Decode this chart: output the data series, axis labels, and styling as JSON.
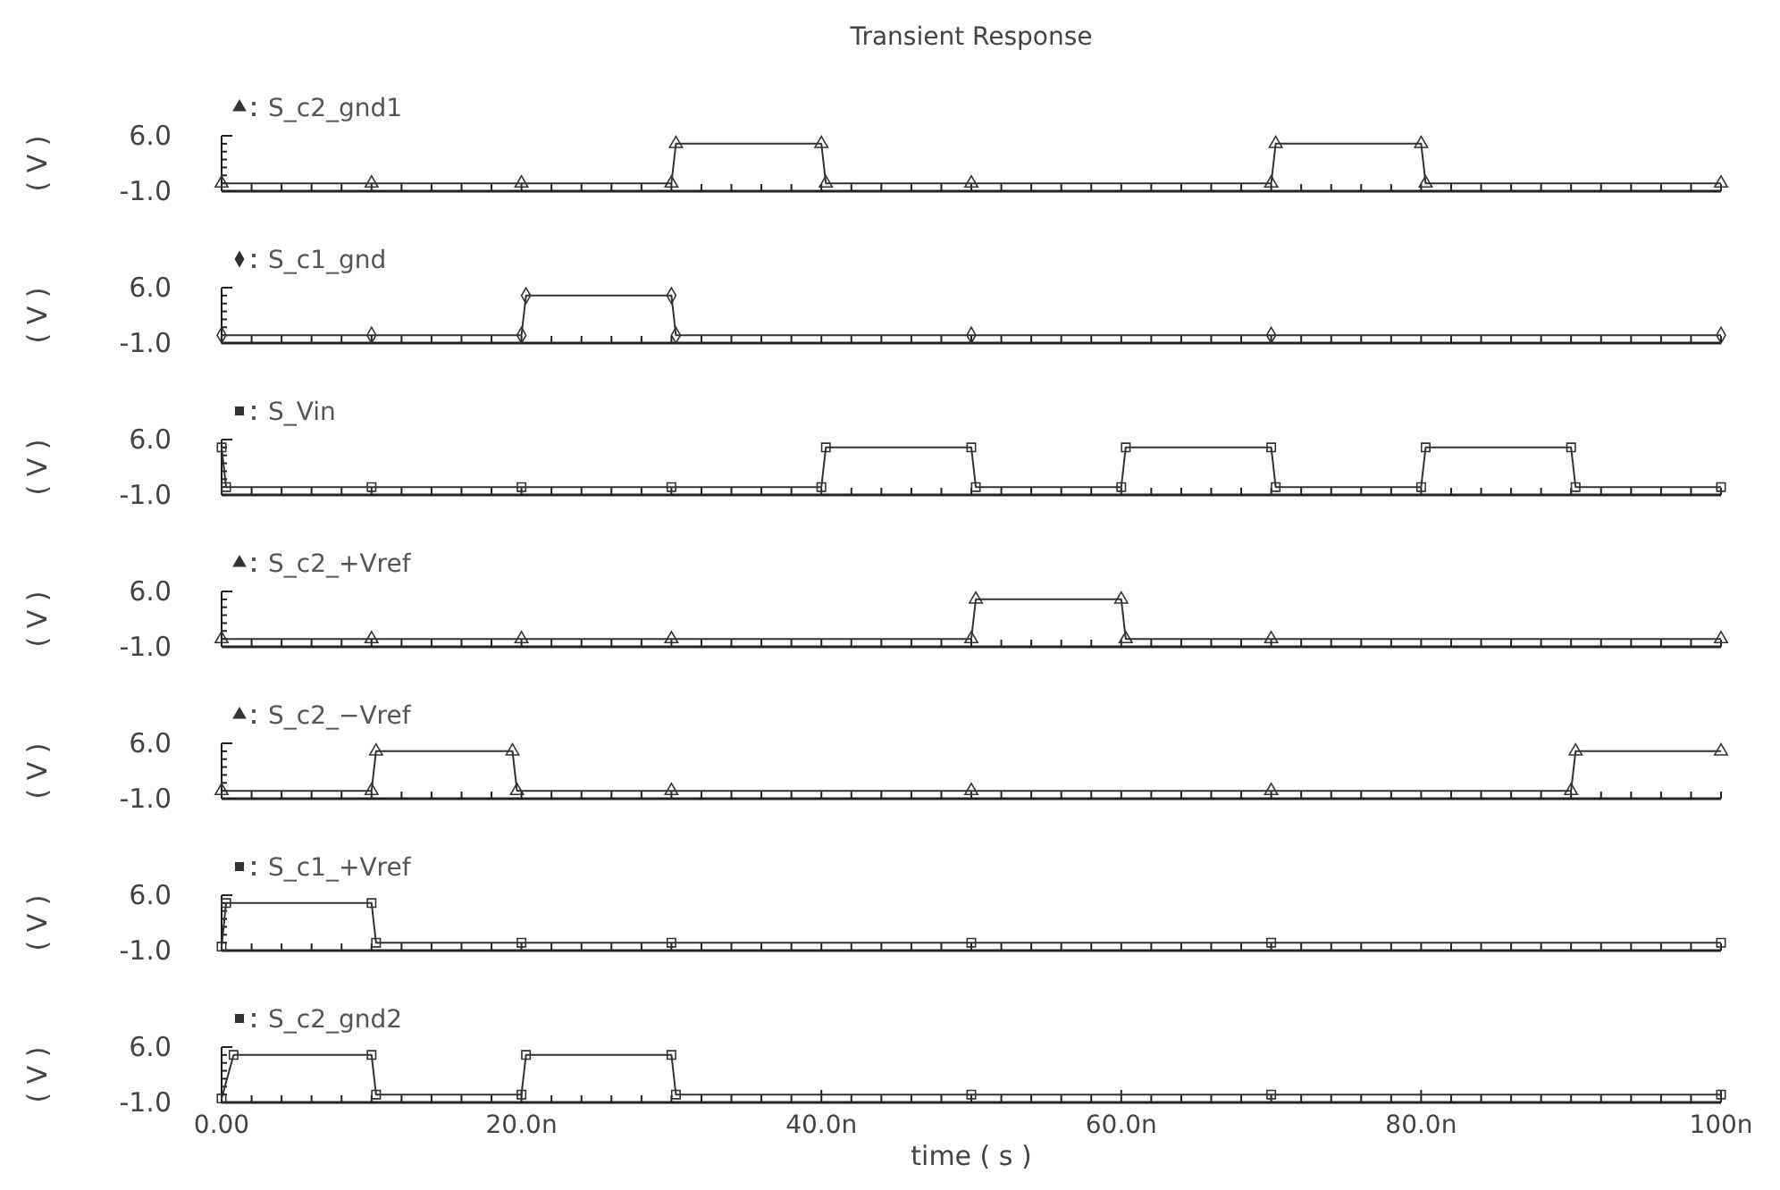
{
  "chart_data": [
    {
      "type": "line",
      "title": "Transient Response",
      "ylabel": "( V )",
      "xlim": [
        0,
        100
      ],
      "ylim": [
        -1,
        6
      ],
      "marker": "triangle",
      "legend": "top left",
      "tick_labels": "y",
      "xticks": [
        {
          "value": 0,
          "label": null
        },
        {
          "value": 2,
          "label": null
        },
        {
          "value": 4,
          "label": null
        },
        {
          "value": 6,
          "label": null
        },
        {
          "value": 8,
          "label": null
        },
        {
          "value": 10,
          "label": null
        },
        {
          "value": 12,
          "label": null
        },
        {
          "value": 14,
          "label": null
        },
        {
          "value": 16,
          "label": null
        },
        {
          "value": 18,
          "label": null
        },
        {
          "value": 20,
          "label": null
        },
        {
          "value": 22,
          "label": null
        },
        {
          "value": 24,
          "label": null
        },
        {
          "value": 26,
          "label": null
        },
        {
          "value": 28,
          "label": null
        },
        {
          "value": 30,
          "label": null
        },
        {
          "value": 32,
          "label": null
        },
        {
          "value": 34,
          "label": null
        },
        {
          "value": 36,
          "label": null
        },
        {
          "value": 38,
          "label": null
        },
        {
          "value": 40,
          "label": null
        },
        {
          "value": 42,
          "label": null
        },
        {
          "value": 44,
          "label": null
        },
        {
          "value": 46,
          "label": null
        },
        {
          "value": 48,
          "label": null
        },
        {
          "value": 50,
          "label": null
        },
        {
          "value": 52,
          "label": null
        },
        {
          "value": 54,
          "label": null
        },
        {
          "value": 56,
          "label": null
        },
        {
          "value": 58,
          "label": null
        },
        {
          "value": 60,
          "label": null
        },
        {
          "value": 62,
          "label": null
        },
        {
          "value": 64,
          "label": null
        },
        {
          "value": 66,
          "label": null
        },
        {
          "value": 68,
          "label": null
        },
        {
          "value": 70,
          "label": null
        },
        {
          "value": 72,
          "label": null
        },
        {
          "value": 74,
          "label": null
        },
        {
          "value": 76,
          "label": null
        },
        {
          "value": 78,
          "label": null
        },
        {
          "value": 80,
          "label": null
        },
        {
          "value": 82,
          "label": null
        },
        {
          "value": 84,
          "label": null
        },
        {
          "value": 86,
          "label": null
        },
        {
          "value": 88,
          "label": null
        },
        {
          "value": 90,
          "label": null
        },
        {
          "value": 92,
          "label": null
        },
        {
          "value": 94,
          "label": null
        },
        {
          "value": 96,
          "label": null
        },
        {
          "value": 98,
          "label": null
        },
        {
          "value": 100,
          "label": null
        }
      ],
      "yticks": [
        {
          "value": -1,
          "label": "-1.0"
        },
        {
          "value": 0,
          "label": null
        },
        {
          "value": 1,
          "label": null
        },
        {
          "value": 2,
          "label": null
        },
        {
          "value": 3,
          "label": null
        },
        {
          "value": 4,
          "label": null
        },
        {
          "value": 5,
          "label": null
        },
        {
          "value": 6,
          "label": "6.0"
        }
      ],
      "series": [
        {
          "name": "S_c2_gnd1",
          "color": "#333333",
          "x": [
            0,
            10,
            20,
            30,
            30.3,
            40,
            40.3,
            50,
            70,
            70.3,
            80,
            80.3,
            100
          ],
          "values": [
            0,
            0,
            0,
            0,
            5,
            5,
            0,
            0,
            0,
            5,
            5,
            0,
            0
          ]
        }
      ]
    },
    {
      "type": "line",
      "ylabel": "( V )",
      "xlim": [
        0,
        100
      ],
      "ylim": [
        -1,
        6
      ],
      "marker": "diamond",
      "legend": "top left",
      "tick_labels": "y",
      "xticks": [
        {
          "value": 0,
          "label": null
        },
        {
          "value": 2,
          "label": null
        },
        {
          "value": 4,
          "label": null
        },
        {
          "value": 6,
          "label": null
        },
        {
          "value": 8,
          "label": null
        },
        {
          "value": 10,
          "label": null
        },
        {
          "value": 12,
          "label": null
        },
        {
          "value": 14,
          "label": null
        },
        {
          "value": 16,
          "label": null
        },
        {
          "value": 18,
          "label": null
        },
        {
          "value": 20,
          "label": null
        },
        {
          "value": 22,
          "label": null
        },
        {
          "value": 24,
          "label": null
        },
        {
          "value": 26,
          "label": null
        },
        {
          "value": 28,
          "label": null
        },
        {
          "value": 30,
          "label": null
        },
        {
          "value": 32,
          "label": null
        },
        {
          "value": 34,
          "label": null
        },
        {
          "value": 36,
          "label": null
        },
        {
          "value": 38,
          "label": null
        },
        {
          "value": 40,
          "label": null
        },
        {
          "value": 42,
          "label": null
        },
        {
          "value": 44,
          "label": null
        },
        {
          "value": 46,
          "label": null
        },
        {
          "value": 48,
          "label": null
        },
        {
          "value": 50,
          "label": null
        },
        {
          "value": 52,
          "label": null
        },
        {
          "value": 54,
          "label": null
        },
        {
          "value": 56,
          "label": null
        },
        {
          "value": 58,
          "label": null
        },
        {
          "value": 60,
          "label": null
        },
        {
          "value": 62,
          "label": null
        },
        {
          "value": 64,
          "label": null
        },
        {
          "value": 66,
          "label": null
        },
        {
          "value": 68,
          "label": null
        },
        {
          "value": 70,
          "label": null
        },
        {
          "value": 72,
          "label": null
        },
        {
          "value": 74,
          "label": null
        },
        {
          "value": 76,
          "label": null
        },
        {
          "value": 78,
          "label": null
        },
        {
          "value": 80,
          "label": null
        },
        {
          "value": 82,
          "label": null
        },
        {
          "value": 84,
          "label": null
        },
        {
          "value": 86,
          "label": null
        },
        {
          "value": 88,
          "label": null
        },
        {
          "value": 90,
          "label": null
        },
        {
          "value": 92,
          "label": null
        },
        {
          "value": 94,
          "label": null
        },
        {
          "value": 96,
          "label": null
        },
        {
          "value": 98,
          "label": null
        },
        {
          "value": 100,
          "label": null
        }
      ],
      "yticks": [
        {
          "value": -1,
          "label": "-1.0"
        },
        {
          "value": 0,
          "label": null
        },
        {
          "value": 1,
          "label": null
        },
        {
          "value": 2,
          "label": null
        },
        {
          "value": 3,
          "label": null
        },
        {
          "value": 4,
          "label": null
        },
        {
          "value": 5,
          "label": null
        },
        {
          "value": 6,
          "label": "6.0"
        }
      ],
      "series": [
        {
          "name": "S_c1_gnd",
          "color": "#333333",
          "x": [
            0,
            10,
            20,
            20.3,
            30,
            30.3,
            50,
            70,
            100
          ],
          "values": [
            0,
            0,
            0,
            5,
            5,
            0,
            0,
            0,
            0
          ]
        }
      ]
    },
    {
      "type": "line",
      "ylabel": "( V )",
      "xlim": [
        0,
        100
      ],
      "ylim": [
        -1,
        6
      ],
      "marker": "square",
      "legend": "top left",
      "tick_labels": "y",
      "xticks": [
        {
          "value": 0,
          "label": null
        },
        {
          "value": 2,
          "label": null
        },
        {
          "value": 4,
          "label": null
        },
        {
          "value": 6,
          "label": null
        },
        {
          "value": 8,
          "label": null
        },
        {
          "value": 10,
          "label": null
        },
        {
          "value": 12,
          "label": null
        },
        {
          "value": 14,
          "label": null
        },
        {
          "value": 16,
          "label": null
        },
        {
          "value": 18,
          "label": null
        },
        {
          "value": 20,
          "label": null
        },
        {
          "value": 22,
          "label": null
        },
        {
          "value": 24,
          "label": null
        },
        {
          "value": 26,
          "label": null
        },
        {
          "value": 28,
          "label": null
        },
        {
          "value": 30,
          "label": null
        },
        {
          "value": 32,
          "label": null
        },
        {
          "value": 34,
          "label": null
        },
        {
          "value": 36,
          "label": null
        },
        {
          "value": 38,
          "label": null
        },
        {
          "value": 40,
          "label": null
        },
        {
          "value": 42,
          "label": null
        },
        {
          "value": 44,
          "label": null
        },
        {
          "value": 46,
          "label": null
        },
        {
          "value": 48,
          "label": null
        },
        {
          "value": 50,
          "label": null
        },
        {
          "value": 52,
          "label": null
        },
        {
          "value": 54,
          "label": null
        },
        {
          "value": 56,
          "label": null
        },
        {
          "value": 58,
          "label": null
        },
        {
          "value": 60,
          "label": null
        },
        {
          "value": 62,
          "label": null
        },
        {
          "value": 64,
          "label": null
        },
        {
          "value": 66,
          "label": null
        },
        {
          "value": 68,
          "label": null
        },
        {
          "value": 70,
          "label": null
        },
        {
          "value": 72,
          "label": null
        },
        {
          "value": 74,
          "label": null
        },
        {
          "value": 76,
          "label": null
        },
        {
          "value": 78,
          "label": null
        },
        {
          "value": 80,
          "label": null
        },
        {
          "value": 82,
          "label": null
        },
        {
          "value": 84,
          "label": null
        },
        {
          "value": 86,
          "label": null
        },
        {
          "value": 88,
          "label": null
        },
        {
          "value": 90,
          "label": null
        },
        {
          "value": 92,
          "label": null
        },
        {
          "value": 94,
          "label": null
        },
        {
          "value": 96,
          "label": null
        },
        {
          "value": 98,
          "label": null
        },
        {
          "value": 100,
          "label": null
        }
      ],
      "yticks": [
        {
          "value": -1,
          "label": "-1.0"
        },
        {
          "value": 0,
          "label": null
        },
        {
          "value": 1,
          "label": null
        },
        {
          "value": 2,
          "label": null
        },
        {
          "value": 3,
          "label": null
        },
        {
          "value": 4,
          "label": null
        },
        {
          "value": 5,
          "label": null
        },
        {
          "value": 6,
          "label": "6.0"
        }
      ],
      "series": [
        {
          "name": "S_Vin",
          "color": "#333333",
          "x": [
            0,
            0.3,
            10,
            20,
            30,
            40,
            40.3,
            50,
            50.3,
            60,
            60.3,
            70,
            70.3,
            80,
            80.3,
            90,
            90.3,
            100
          ],
          "values": [
            5,
            0,
            0,
            0,
            0,
            0,
            5,
            5,
            0,
            0,
            5,
            5,
            0,
            0,
            5,
            5,
            0,
            0
          ]
        }
      ]
    },
    {
      "type": "line",
      "ylabel": "( V )",
      "xlim": [
        0,
        100
      ],
      "ylim": [
        -1,
        6
      ],
      "marker": "triangle",
      "legend": "top left",
      "tick_labels": "y",
      "xticks": [
        {
          "value": 0,
          "label": null
        },
        {
          "value": 2,
          "label": null
        },
        {
          "value": 4,
          "label": null
        },
        {
          "value": 6,
          "label": null
        },
        {
          "value": 8,
          "label": null
        },
        {
          "value": 10,
          "label": null
        },
        {
          "value": 12,
          "label": null
        },
        {
          "value": 14,
          "label": null
        },
        {
          "value": 16,
          "label": null
        },
        {
          "value": 18,
          "label": null
        },
        {
          "value": 20,
          "label": null
        },
        {
          "value": 22,
          "label": null
        },
        {
          "value": 24,
          "label": null
        },
        {
          "value": 26,
          "label": null
        },
        {
          "value": 28,
          "label": null
        },
        {
          "value": 30,
          "label": null
        },
        {
          "value": 32,
          "label": null
        },
        {
          "value": 34,
          "label": null
        },
        {
          "value": 36,
          "label": null
        },
        {
          "value": 38,
          "label": null
        },
        {
          "value": 40,
          "label": null
        },
        {
          "value": 42,
          "label": null
        },
        {
          "value": 44,
          "label": null
        },
        {
          "value": 46,
          "label": null
        },
        {
          "value": 48,
          "label": null
        },
        {
          "value": 50,
          "label": null
        },
        {
          "value": 52,
          "label": null
        },
        {
          "value": 54,
          "label": null
        },
        {
          "value": 56,
          "label": null
        },
        {
          "value": 58,
          "label": null
        },
        {
          "value": 60,
          "label": null
        },
        {
          "value": 62,
          "label": null
        },
        {
          "value": 64,
          "label": null
        },
        {
          "value": 66,
          "label": null
        },
        {
          "value": 68,
          "label": null
        },
        {
          "value": 70,
          "label": null
        },
        {
          "value": 72,
          "label": null
        },
        {
          "value": 74,
          "label": null
        },
        {
          "value": 76,
          "label": null
        },
        {
          "value": 78,
          "label": null
        },
        {
          "value": 80,
          "label": null
        },
        {
          "value": 82,
          "label": null
        },
        {
          "value": 84,
          "label": null
        },
        {
          "value": 86,
          "label": null
        },
        {
          "value": 88,
          "label": null
        },
        {
          "value": 90,
          "label": null
        },
        {
          "value": 92,
          "label": null
        },
        {
          "value": 94,
          "label": null
        },
        {
          "value": 96,
          "label": null
        },
        {
          "value": 98,
          "label": null
        },
        {
          "value": 100,
          "label": null
        }
      ],
      "yticks": [
        {
          "value": -1,
          "label": "-1.0"
        },
        {
          "value": 0,
          "label": null
        },
        {
          "value": 1,
          "label": null
        },
        {
          "value": 2,
          "label": null
        },
        {
          "value": 3,
          "label": null
        },
        {
          "value": 4,
          "label": null
        },
        {
          "value": 5,
          "label": null
        },
        {
          "value": 6,
          "label": "6.0"
        }
      ],
      "series": [
        {
          "name": "S_c2_+Vref",
          "color": "#333333",
          "x": [
            0,
            10,
            20,
            30,
            50,
            50.3,
            60,
            60.3,
            70,
            100
          ],
          "values": [
            0,
            0,
            0,
            0,
            0,
            5,
            5,
            0,
            0,
            0
          ]
        }
      ]
    },
    {
      "type": "line",
      "ylabel": "( V )",
      "xlim": [
        0,
        100
      ],
      "ylim": [
        -1,
        6
      ],
      "marker": "triangle",
      "legend": "top left",
      "tick_labels": "y",
      "xticks": [
        {
          "value": 0,
          "label": null
        },
        {
          "value": 2,
          "label": null
        },
        {
          "value": 4,
          "label": null
        },
        {
          "value": 6,
          "label": null
        },
        {
          "value": 8,
          "label": null
        },
        {
          "value": 10,
          "label": null
        },
        {
          "value": 12,
          "label": null
        },
        {
          "value": 14,
          "label": null
        },
        {
          "value": 16,
          "label": null
        },
        {
          "value": 18,
          "label": null
        },
        {
          "value": 20,
          "label": null
        },
        {
          "value": 22,
          "label": null
        },
        {
          "value": 24,
          "label": null
        },
        {
          "value": 26,
          "label": null
        },
        {
          "value": 28,
          "label": null
        },
        {
          "value": 30,
          "label": null
        },
        {
          "value": 32,
          "label": null
        },
        {
          "value": 34,
          "label": null
        },
        {
          "value": 36,
          "label": null
        },
        {
          "value": 38,
          "label": null
        },
        {
          "value": 40,
          "label": null
        },
        {
          "value": 42,
          "label": null
        },
        {
          "value": 44,
          "label": null
        },
        {
          "value": 46,
          "label": null
        },
        {
          "value": 48,
          "label": null
        },
        {
          "value": 50,
          "label": null
        },
        {
          "value": 52,
          "label": null
        },
        {
          "value": 54,
          "label": null
        },
        {
          "value": 56,
          "label": null
        },
        {
          "value": 58,
          "label": null
        },
        {
          "value": 60,
          "label": null
        },
        {
          "value": 62,
          "label": null
        },
        {
          "value": 64,
          "label": null
        },
        {
          "value": 66,
          "label": null
        },
        {
          "value": 68,
          "label": null
        },
        {
          "value": 70,
          "label": null
        },
        {
          "value": 72,
          "label": null
        },
        {
          "value": 74,
          "label": null
        },
        {
          "value": 76,
          "label": null
        },
        {
          "value": 78,
          "label": null
        },
        {
          "value": 80,
          "label": null
        },
        {
          "value": 82,
          "label": null
        },
        {
          "value": 84,
          "label": null
        },
        {
          "value": 86,
          "label": null
        },
        {
          "value": 88,
          "label": null
        },
        {
          "value": 90,
          "label": null
        },
        {
          "value": 92,
          "label": null
        },
        {
          "value": 94,
          "label": null
        },
        {
          "value": 96,
          "label": null
        },
        {
          "value": 98,
          "label": null
        },
        {
          "value": 100,
          "label": null
        }
      ],
      "yticks": [
        {
          "value": -1,
          "label": "-1.0"
        },
        {
          "value": 0,
          "label": null
        },
        {
          "value": 1,
          "label": null
        },
        {
          "value": 2,
          "label": null
        },
        {
          "value": 3,
          "label": null
        },
        {
          "value": 4,
          "label": null
        },
        {
          "value": 5,
          "label": null
        },
        {
          "value": 6,
          "label": "6.0"
        }
      ],
      "series": [
        {
          "name": "S_c2_−Vref",
          "color": "#333333",
          "x": [
            0,
            10,
            10.3,
            19.4,
            19.7,
            30,
            50,
            70,
            90,
            90.3,
            100
          ],
          "values": [
            0,
            0,
            5,
            5,
            0,
            0,
            0,
            0,
            0,
            5,
            5
          ]
        }
      ]
    },
    {
      "type": "line",
      "ylabel": "( V )",
      "xlim": [
        0,
        100
      ],
      "ylim": [
        -1,
        6
      ],
      "marker": "square",
      "legend": "top left",
      "tick_labels": "y",
      "xticks": [
        {
          "value": 0,
          "label": null
        },
        {
          "value": 2,
          "label": null
        },
        {
          "value": 4,
          "label": null
        },
        {
          "value": 6,
          "label": null
        },
        {
          "value": 8,
          "label": null
        },
        {
          "value": 10,
          "label": null
        },
        {
          "value": 12,
          "label": null
        },
        {
          "value": 14,
          "label": null
        },
        {
          "value": 16,
          "label": null
        },
        {
          "value": 18,
          "label": null
        },
        {
          "value": 20,
          "label": null
        },
        {
          "value": 22,
          "label": null
        },
        {
          "value": 24,
          "label": null
        },
        {
          "value": 26,
          "label": null
        },
        {
          "value": 28,
          "label": null
        },
        {
          "value": 30,
          "label": null
        },
        {
          "value": 32,
          "label": null
        },
        {
          "value": 34,
          "label": null
        },
        {
          "value": 36,
          "label": null
        },
        {
          "value": 38,
          "label": null
        },
        {
          "value": 40,
          "label": null
        },
        {
          "value": 42,
          "label": null
        },
        {
          "value": 44,
          "label": null
        },
        {
          "value": 46,
          "label": null
        },
        {
          "value": 48,
          "label": null
        },
        {
          "value": 50,
          "label": null
        },
        {
          "value": 52,
          "label": null
        },
        {
          "value": 54,
          "label": null
        },
        {
          "value": 56,
          "label": null
        },
        {
          "value": 58,
          "label": null
        },
        {
          "value": 60,
          "label": null
        },
        {
          "value": 62,
          "label": null
        },
        {
          "value": 64,
          "label": null
        },
        {
          "value": 66,
          "label": null
        },
        {
          "value": 68,
          "label": null
        },
        {
          "value": 70,
          "label": null
        },
        {
          "value": 72,
          "label": null
        },
        {
          "value": 74,
          "label": null
        },
        {
          "value": 76,
          "label": null
        },
        {
          "value": 78,
          "label": null
        },
        {
          "value": 80,
          "label": null
        },
        {
          "value": 82,
          "label": null
        },
        {
          "value": 84,
          "label": null
        },
        {
          "value": 86,
          "label": null
        },
        {
          "value": 88,
          "label": null
        },
        {
          "value": 90,
          "label": null
        },
        {
          "value": 92,
          "label": null
        },
        {
          "value": 94,
          "label": null
        },
        {
          "value": 96,
          "label": null
        },
        {
          "value": 98,
          "label": null
        },
        {
          "value": 100,
          "label": null
        }
      ],
      "yticks": [
        {
          "value": -1,
          "label": "-1.0"
        },
        {
          "value": 0,
          "label": null
        },
        {
          "value": 1,
          "label": null
        },
        {
          "value": 2,
          "label": null
        },
        {
          "value": 3,
          "label": null
        },
        {
          "value": 4,
          "label": null
        },
        {
          "value": 5,
          "label": null
        },
        {
          "value": 6,
          "label": "6.0"
        }
      ],
      "series": [
        {
          "name": "S_c1_+Vref",
          "color": "#333333",
          "x": [
            0,
            0.3,
            10,
            10.3,
            20,
            30,
            50,
            70,
            100
          ],
          "values": [
            -0.5,
            5,
            5,
            0,
            0,
            0,
            0,
            0,
            0
          ]
        }
      ]
    },
    {
      "type": "line",
      "xlabel": "time ( s )",
      "ylabel": "( V )",
      "xlim": [
        0,
        100
      ],
      "ylim": [
        -1,
        6
      ],
      "marker": "square",
      "legend": "top left",
      "xticks": [
        {
          "value": 0,
          "label": "0.00"
        },
        {
          "value": 2,
          "label": null
        },
        {
          "value": 4,
          "label": null
        },
        {
          "value": 6,
          "label": null
        },
        {
          "value": 8,
          "label": null
        },
        {
          "value": 10,
          "label": null
        },
        {
          "value": 12,
          "label": null
        },
        {
          "value": 14,
          "label": null
        },
        {
          "value": 16,
          "label": null
        },
        {
          "value": 18,
          "label": null
        },
        {
          "value": 20,
          "label": "20.0n"
        },
        {
          "value": 22,
          "label": null
        },
        {
          "value": 24,
          "label": null
        },
        {
          "value": 26,
          "label": null
        },
        {
          "value": 28,
          "label": null
        },
        {
          "value": 30,
          "label": null
        },
        {
          "value": 32,
          "label": null
        },
        {
          "value": 34,
          "label": null
        },
        {
          "value": 36,
          "label": null
        },
        {
          "value": 38,
          "label": null
        },
        {
          "value": 40,
          "label": "40.0n"
        },
        {
          "value": 42,
          "label": null
        },
        {
          "value": 44,
          "label": null
        },
        {
          "value": 46,
          "label": null
        },
        {
          "value": 48,
          "label": null
        },
        {
          "value": 50,
          "label": null
        },
        {
          "value": 52,
          "label": null
        },
        {
          "value": 54,
          "label": null
        },
        {
          "value": 56,
          "label": null
        },
        {
          "value": 58,
          "label": null
        },
        {
          "value": 60,
          "label": "60.0n"
        },
        {
          "value": 62,
          "label": null
        },
        {
          "value": 64,
          "label": null
        },
        {
          "value": 66,
          "label": null
        },
        {
          "value": 68,
          "label": null
        },
        {
          "value": 70,
          "label": null
        },
        {
          "value": 72,
          "label": null
        },
        {
          "value": 74,
          "label": null
        },
        {
          "value": 76,
          "label": null
        },
        {
          "value": 78,
          "label": null
        },
        {
          "value": 80,
          "label": "80.0n"
        },
        {
          "value": 82,
          "label": null
        },
        {
          "value": 84,
          "label": null
        },
        {
          "value": 86,
          "label": null
        },
        {
          "value": 88,
          "label": null
        },
        {
          "value": 90,
          "label": null
        },
        {
          "value": 92,
          "label": null
        },
        {
          "value": 94,
          "label": null
        },
        {
          "value": 96,
          "label": null
        },
        {
          "value": 98,
          "label": null
        },
        {
          "value": 100,
          "label": "100n"
        }
      ],
      "yticks": [
        {
          "value": -1,
          "label": "-1.0"
        },
        {
          "value": 0,
          "label": null
        },
        {
          "value": 1,
          "label": null
        },
        {
          "value": 2,
          "label": null
        },
        {
          "value": 3,
          "label": null
        },
        {
          "value": 4,
          "label": null
        },
        {
          "value": 5,
          "label": null
        },
        {
          "value": 6,
          "label": "6.0"
        }
      ],
      "series": [
        {
          "name": "S_c2_gnd2",
          "color": "#333333",
          "x": [
            0,
            0.8,
            10,
            10.3,
            20,
            20.3,
            30,
            30.3,
            50,
            70,
            100
          ],
          "values": [
            -0.5,
            5,
            5,
            0,
            0,
            5,
            5,
            0,
            0,
            0,
            0
          ]
        }
      ]
    }
  ]
}
